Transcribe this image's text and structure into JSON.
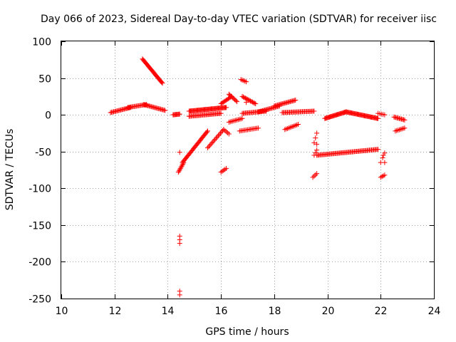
{
  "chart_data": {
    "type": "scatter",
    "title": "Day 066 of 2023, Sidereal Day-to-day VTEC variation (SDTVAR) for receiver iisc",
    "xlabel": "GPS time / hours",
    "ylabel": "SDTVAR / TECUs",
    "xlim": [
      10,
      24
    ],
    "ylim": [
      -250,
      100
    ],
    "xticks": [
      10,
      12,
      14,
      16,
      18,
      20,
      22,
      24
    ],
    "yticks": [
      -250,
      -200,
      -150,
      -100,
      -50,
      0,
      50,
      100
    ],
    "grid": true,
    "marker": "plus",
    "color": "#ff0000",
    "segments": [
      {
        "x0": 11.85,
        "x1": 12.6,
        "y0": 3,
        "y1": 10,
        "step": 0.04
      },
      {
        "x0": 12.5,
        "x1": 13.2,
        "y0": 10,
        "y1": 14,
        "step": 0.04
      },
      {
        "x0": 13.1,
        "x1": 13.9,
        "y0": 14,
        "y1": 6,
        "step": 0.04
      },
      {
        "x0": 13.05,
        "x1": 13.8,
        "y0": 76,
        "y1": 43,
        "step": 0.025
      },
      {
        "x0": 14.2,
        "x1": 14.45,
        "y0": 0,
        "y1": 1,
        "step": 0.03
      },
      {
        "x0": 14.4,
        "x1": 14.6,
        "y0": -78,
        "y1": -65,
        "step": 0.025
      },
      {
        "x0": 14.55,
        "x1": 15.5,
        "y0": -65,
        "y1": -22,
        "step": 0.03
      },
      {
        "x0": 15.5,
        "x1": 16.1,
        "y0": -45,
        "y1": -20,
        "step": 0.04
      },
      {
        "x0": 14.8,
        "x1": 16.2,
        "y0": 5,
        "y1": 10,
        "step": 0.03
      },
      {
        "x0": 14.8,
        "x1": 16.0,
        "y0": -2,
        "y1": 2,
        "step": 0.04
      },
      {
        "x0": 16.0,
        "x1": 16.4,
        "y0": 15,
        "y1": 25,
        "step": 0.04
      },
      {
        "x0": 16.3,
        "x1": 16.6,
        "y0": 28,
        "y1": 18,
        "step": 0.04
      },
      {
        "x0": 16.3,
        "x1": 16.8,
        "y0": -10,
        "y1": -5,
        "step": 0.05
      },
      {
        "x0": 16.1,
        "x1": 16.3,
        "y0": -20,
        "y1": -26,
        "step": 0.05
      },
      {
        "x0": 16.0,
        "x1": 16.2,
        "y0": -78,
        "y1": -73,
        "step": 0.05
      },
      {
        "x0": 16.75,
        "x1": 16.95,
        "y0": 48,
        "y1": 45,
        "step": 0.05
      },
      {
        "x0": 16.8,
        "x1": 17.3,
        "y0": 25,
        "y1": 15,
        "step": 0.04
      },
      {
        "x0": 16.7,
        "x1": 17.4,
        "y0": -22,
        "y1": -18,
        "step": 0.05
      },
      {
        "x0": 16.8,
        "x1": 17.7,
        "y0": 2,
        "y1": 5,
        "step": 0.04
      },
      {
        "x0": 17.4,
        "x1": 18.2,
        "y0": 4,
        "y1": 12,
        "step": 0.04
      },
      {
        "x0": 18.0,
        "x1": 18.8,
        "y0": 12,
        "y1": 20,
        "step": 0.04
      },
      {
        "x0": 18.3,
        "x1": 19.5,
        "y0": 3,
        "y1": 5,
        "step": 0.04
      },
      {
        "x0": 18.4,
        "x1": 18.9,
        "y0": -20,
        "y1": -13,
        "step": 0.05
      },
      {
        "x0": 19.45,
        "x1": 19.6,
        "y0": -85,
        "y1": -80,
        "step": 0.05
      },
      {
        "x0": 19.5,
        "x1": 19.6,
        "y0": -55,
        "y1": -48,
        "step": 0.05
      },
      {
        "x0": 19.5,
        "x1": 19.6,
        "y0": -38,
        "y1": -25,
        "step": 0.05
      },
      {
        "x0": 19.6,
        "x1": 21.9,
        "y0": -55,
        "y1": -47,
        "step": 0.04
      },
      {
        "x0": 19.9,
        "x1": 20.7,
        "y0": -5,
        "y1": 4,
        "step": 0.03
      },
      {
        "x0": 20.7,
        "x1": 21.9,
        "y0": 4,
        "y1": -5,
        "step": 0.03
      },
      {
        "x0": 21.9,
        "x1": 22.15,
        "y0": 2,
        "y1": 0,
        "step": 0.06
      },
      {
        "x0": 22.0,
        "x1": 22.15,
        "y0": -85,
        "y1": -82,
        "step": 0.05
      },
      {
        "x0": 22.0,
        "x1": 22.15,
        "y0": -65,
        "y1": -52,
        "step": 0.07
      },
      {
        "x0": 22.5,
        "x1": 22.9,
        "y0": -3,
        "y1": -7,
        "step": 0.04
      },
      {
        "x0": 22.55,
        "x1": 22.9,
        "y0": -22,
        "y1": -18,
        "step": 0.05
      }
    ],
    "points": [
      [
        14.45,
        -51
      ],
      [
        14.45,
        -165
      ],
      [
        14.45,
        -170
      ],
      [
        14.45,
        -175
      ],
      [
        14.45,
        -240
      ],
      [
        14.45,
        -245
      ],
      [
        16.95,
        17
      ],
      [
        19.6,
        -40
      ],
      [
        22.1,
        -55
      ],
      [
        22.15,
        -65
      ]
    ]
  }
}
